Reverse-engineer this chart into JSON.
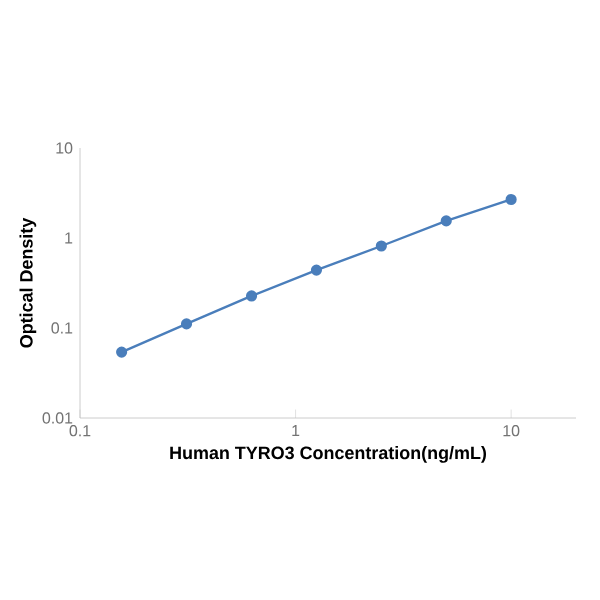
{
  "chart_data": {
    "type": "line",
    "xlabel": "Human  TYRO3  Concentration(ng/mL)",
    "ylabel": "Optical Density",
    "x": [
      0.156,
      0.312,
      0.625,
      1.25,
      2.5,
      5,
      10
    ],
    "values": [
      0.054,
      0.111,
      0.227,
      0.44,
      0.815,
      1.55,
      2.68
    ],
    "color": "#4a7ebb",
    "log": "xy",
    "marker": "circle",
    "line_style": "solid",
    "xlim": [
      0.1,
      20
    ],
    "ylim": [
      0.01,
      10
    ],
    "xticks": [
      0.1,
      1,
      10
    ],
    "yticks": [
      0.01,
      0.1,
      1,
      10
    ]
  }
}
